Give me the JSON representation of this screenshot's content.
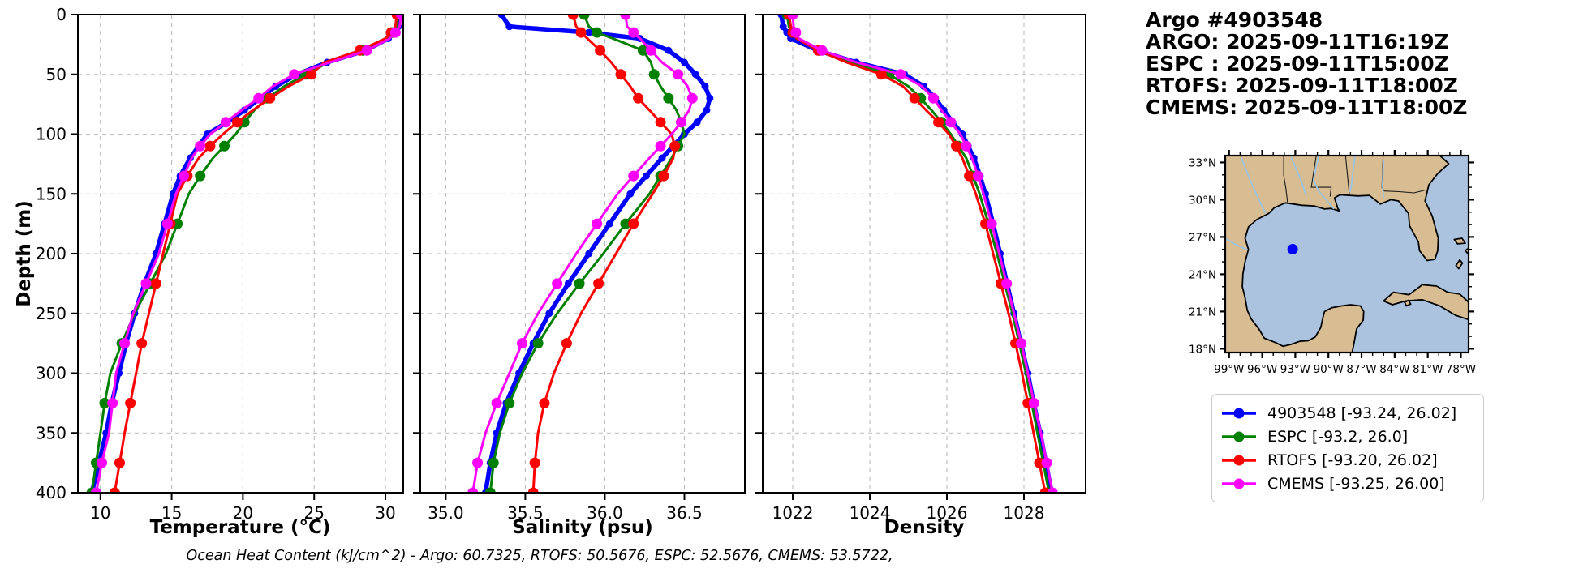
{
  "title_block": {
    "line1": "Argo #4903548",
    "line2": "ARGO: 2025-09-11T16:19Z",
    "line3": "ESPC : 2025-09-11T15:00Z",
    "line4": "RTOFS: 2025-09-11T18:00Z",
    "line5": "CMEMS: 2025-09-11T18:00Z"
  },
  "footnote": "Ocean Heat Content (kJ/cm^2) - Argo: 60.7325,  RTOFS: 50.5676,  ESPC: 52.5676,  CMEMS: 53.5722,",
  "chart_data": {
    "type": "line",
    "profile_orientation": "depth-vertical",
    "ylabel": "Depth (m)",
    "ylim": [
      0,
      400
    ],
    "depth_ticks": [
      0,
      50,
      100,
      150,
      200,
      250,
      300,
      350,
      400
    ],
    "depths": [
      0,
      10,
      15,
      20,
      30,
      40,
      50,
      60,
      70,
      80,
      90,
      100,
      110,
      120,
      135,
      150,
      175,
      200,
      225,
      250,
      275,
      300,
      325,
      350,
      375,
      400
    ],
    "grid": true,
    "series": [
      {
        "key": "argo",
        "name": "4903548 [-93.24, 26.02]",
        "color": "#0000ff",
        "line_width": 5.5,
        "marker_radius": 4.5,
        "marker_every": 1
      },
      {
        "key": "espc",
        "name": "ESPC [-93.2, 26.0]",
        "color": "#008000",
        "line_width": 3,
        "marker_radius": 6.5,
        "marker_every": 2
      },
      {
        "key": "rtofs",
        "name": "RTOFS [-93.20, 26.02]",
        "color": "#ff0000",
        "line_width": 3,
        "marker_radius": 6.5,
        "marker_every": 2
      },
      {
        "key": "cmems",
        "name": "CMEMS [-93.25, 26.00]",
        "color": "#ff00ff",
        "line_width": 3,
        "marker_radius": 6.5,
        "marker_every": 2
      }
    ],
    "panels": [
      {
        "id": "temperature",
        "xlabel": "Temperature (°C)",
        "xlim": [
          8.42,
          31.25
        ],
        "xticks": [
          10,
          15,
          20,
          25,
          30
        ],
        "xtick_labels": [
          "10",
          "15",
          "20",
          "25",
          "30"
        ],
        "values": {
          "argo": [
            31.0,
            30.9,
            30.6,
            30.2,
            28.6,
            25.9,
            23.8,
            22.3,
            21.2,
            20.1,
            18.9,
            17.5,
            16.9,
            16.3,
            15.6,
            15.1,
            14.5,
            13.9,
            13.1,
            12.4,
            11.8,
            11.3,
            10.8,
            10.4,
            9.9,
            9.4
          ],
          "espc": [
            30.9,
            30.8,
            30.5,
            30.1,
            28.4,
            26.0,
            24.4,
            22.9,
            21.7,
            20.8,
            20.1,
            19.5,
            18.7,
            17.9,
            17.0,
            16.2,
            15.4,
            14.6,
            13.5,
            12.4,
            11.5,
            10.7,
            10.3,
            10.0,
            9.7,
            9.4
          ],
          "rtofs": [
            30.8,
            30.7,
            30.4,
            30.0,
            28.2,
            25.7,
            24.8,
            23.2,
            21.9,
            20.7,
            19.6,
            18.6,
            17.7,
            16.9,
            16.1,
            15.4,
            14.9,
            14.4,
            13.9,
            13.4,
            12.9,
            12.5,
            12.1,
            11.7,
            11.35,
            11.0
          ],
          "cmems": [
            31.1,
            31.0,
            30.7,
            30.3,
            28.7,
            26.1,
            23.6,
            22.1,
            21.1,
            19.9,
            18.8,
            17.7,
            17.0,
            16.4,
            15.85,
            15.3,
            14.7,
            14.1,
            13.2,
            12.3,
            11.7,
            11.1,
            10.85,
            10.6,
            10.1,
            9.7
          ]
        }
      },
      {
        "id": "salinity",
        "xlabel": "Salinity (psu)",
        "xlim": [
          34.84,
          36.88
        ],
        "xticks": [
          35.0,
          35.5,
          36.0,
          36.5
        ],
        "xtick_labels": [
          "35.0",
          "35.5",
          "36.0",
          "36.5"
        ],
        "values": {
          "argo": [
            35.35,
            35.4,
            35.9,
            36.22,
            36.4,
            36.5,
            36.57,
            36.63,
            36.66,
            36.64,
            36.58,
            36.5,
            36.43,
            36.36,
            36.26,
            36.16,
            36.03,
            35.9,
            35.77,
            35.65,
            35.55,
            35.46,
            35.38,
            35.32,
            35.28,
            35.25
          ],
          "espc": [
            35.87,
            35.9,
            35.95,
            36.05,
            36.24,
            36.29,
            36.31,
            36.35,
            36.4,
            36.45,
            36.48,
            36.5,
            36.46,
            36.42,
            36.35,
            36.28,
            36.13,
            35.99,
            35.84,
            35.7,
            35.58,
            35.48,
            35.4,
            35.34,
            35.3,
            35.28
          ],
          "rtofs": [
            35.8,
            35.82,
            35.85,
            35.89,
            35.97,
            36.04,
            36.1,
            36.16,
            36.21,
            36.28,
            36.35,
            36.42,
            36.44,
            36.43,
            36.37,
            36.3,
            36.18,
            36.07,
            35.96,
            35.85,
            35.76,
            35.68,
            35.62,
            35.58,
            35.56,
            35.55
          ],
          "cmems": [
            36.13,
            36.14,
            36.18,
            36.22,
            36.29,
            36.36,
            36.46,
            36.52,
            36.55,
            36.53,
            36.48,
            36.42,
            36.35,
            36.28,
            36.18,
            36.08,
            35.95,
            35.82,
            35.7,
            35.58,
            35.48,
            35.4,
            35.32,
            35.25,
            35.2,
            35.17
          ]
        }
      },
      {
        "id": "density",
        "xlabel": "Density",
        "xlim": [
          1021.22,
          1029.6
        ],
        "xticks": [
          1022,
          1024,
          1026,
          1028
        ],
        "xtick_labels": [
          "1022",
          "1024",
          "1026",
          "1028"
        ],
        "values": {
          "argo": [
            1021.7,
            1021.75,
            1021.85,
            1021.95,
            1022.65,
            1023.65,
            1024.9,
            1025.4,
            1025.7,
            1025.92,
            1026.15,
            1026.4,
            1026.55,
            1026.7,
            1026.86,
            1027.0,
            1027.2,
            1027.38,
            1027.56,
            1027.74,
            1027.92,
            1028.1,
            1028.25,
            1028.42,
            1028.57,
            1028.72
          ],
          "espc": [
            1021.85,
            1021.9,
            1022.0,
            1022.1,
            1022.7,
            1023.5,
            1024.5,
            1025.0,
            1025.32,
            1025.6,
            1025.86,
            1026.1,
            1026.3,
            1026.5,
            1026.68,
            1026.85,
            1027.08,
            1027.3,
            1027.5,
            1027.7,
            1027.88,
            1028.05,
            1028.2,
            1028.35,
            1028.5,
            1028.65
          ],
          "rtofs": [
            1021.9,
            1021.95,
            1022.0,
            1022.1,
            1022.66,
            1023.4,
            1024.3,
            1024.86,
            1025.16,
            1025.46,
            1025.78,
            1026.05,
            1026.24,
            1026.4,
            1026.58,
            1026.75,
            1027.0,
            1027.2,
            1027.4,
            1027.6,
            1027.78,
            1027.95,
            1028.1,
            1028.25,
            1028.4,
            1028.55
          ],
          "cmems": [
            1022.0,
            1022.02,
            1022.08,
            1022.16,
            1022.76,
            1023.66,
            1024.8,
            1025.35,
            1025.65,
            1025.86,
            1026.1,
            1026.35,
            1026.5,
            1026.65,
            1026.81,
            1026.95,
            1027.16,
            1027.36,
            1027.55,
            1027.74,
            1027.93,
            1028.1,
            1028.26,
            1028.44,
            1028.59,
            1028.74
          ]
        }
      }
    ]
  },
  "map": {
    "extent": {
      "lon_min": -99.35,
      "lon_max": -77.3,
      "lat_min": 17.7,
      "lat_max": 33.55
    },
    "lat_ticks": [
      {
        "value": 33,
        "label": "33°N"
      },
      {
        "value": 30,
        "label": "30°N"
      },
      {
        "value": 27,
        "label": "27°N"
      },
      {
        "value": 24,
        "label": "24°N"
      },
      {
        "value": 21,
        "label": "21°N"
      },
      {
        "value": 18,
        "label": "18°N"
      }
    ],
    "lon_ticks": [
      {
        "value": -99,
        "label": "99°W"
      },
      {
        "value": -96,
        "label": "96°W"
      },
      {
        "value": -93,
        "label": "93°W"
      },
      {
        "value": -90,
        "label": "90°W"
      },
      {
        "value": -87,
        "label": "87°W"
      },
      {
        "value": -84,
        "label": "84°W"
      },
      {
        "value": -81,
        "label": "81°W"
      },
      {
        "value": -78,
        "label": "78°W"
      }
    ],
    "marker": {
      "lon": -93.24,
      "lat": 26.02,
      "color": "#0000ff"
    },
    "colors": {
      "water": "#abc3de",
      "land": "#d8bc92",
      "river": "#9cc4e4",
      "coast": "#000000",
      "state_border": "#1a1a1a"
    }
  }
}
